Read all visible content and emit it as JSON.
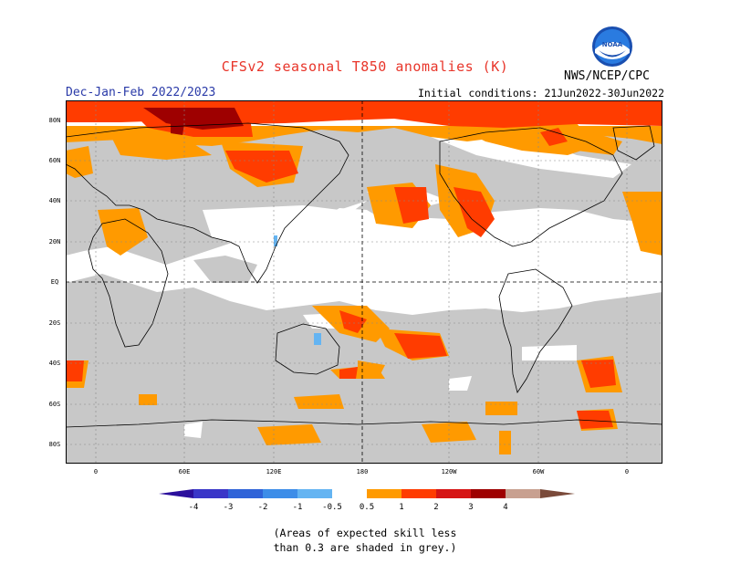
{
  "title": "CFSv2 seasonal T850 anomalies (K)",
  "period": "Dec-Jan-Feb 2022/2023",
  "initial_conditions": "Initial conditions: 21Jun2022-30Jun2022",
  "agency": "NWS/NCEP/CPC",
  "logo_text": "NOAA",
  "footnote_line1": "(Areas of expected skill less",
  "footnote_line2": "than 0.3 are shaded in grey.)",
  "lat_labels": [
    "80N",
    "60N",
    "40N",
    "20N",
    "EQ",
    "20S",
    "40S",
    "60S",
    "80S"
  ],
  "lon_labels": [
    "0",
    "60E",
    "120E",
    "180",
    "120W",
    "60W",
    "0"
  ],
  "colorbar": {
    "labels": [
      "-4",
      "-3",
      "-2",
      "-1",
      "-0.5",
      "0.5",
      "1",
      "2",
      "3",
      "4"
    ],
    "colors": [
      "#2b0f9c",
      "#3a36c8",
      "#2f63d8",
      "#3d8de8",
      "#64b4f2",
      "#ffffff",
      "#ff9a00",
      "#ff3c00",
      "#d61414",
      "#9e0000",
      "#c8a090",
      "#7a4a3a"
    ]
  },
  "colors": {
    "grey": "#c8c8c8",
    "orange": "#ff9a00",
    "red_orange": "#ff3c00",
    "red": "#d61414",
    "dark_red": "#9e0000",
    "light_blue": "#64b4f2"
  }
}
